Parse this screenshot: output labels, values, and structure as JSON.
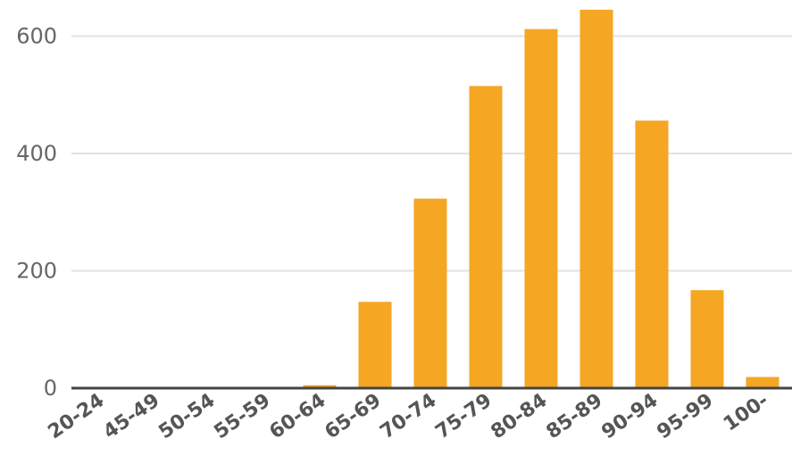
{
  "chart_data": {
    "type": "bar",
    "title": "",
    "xlabel": "",
    "ylabel": "",
    "categories": [
      "20-24",
      "45-49",
      "50-54",
      "55-59",
      "60-64",
      "65-69",
      "70-74",
      "75-79",
      "80-84",
      "85-89",
      "90-94",
      "95-99",
      "100-"
    ],
    "values": [
      0,
      0,
      0,
      0,
      5,
      147,
      323,
      515,
      612,
      645,
      456,
      167,
      19
    ],
    "ylim": [
      0,
      660
    ],
    "yticks": [
      "0",
      "200",
      "400",
      "600"
    ],
    "grid": true,
    "legend": "none",
    "bar_color": "#f5a623",
    "grid_color": "#e2e2e2",
    "axis_color": "#444444"
  }
}
